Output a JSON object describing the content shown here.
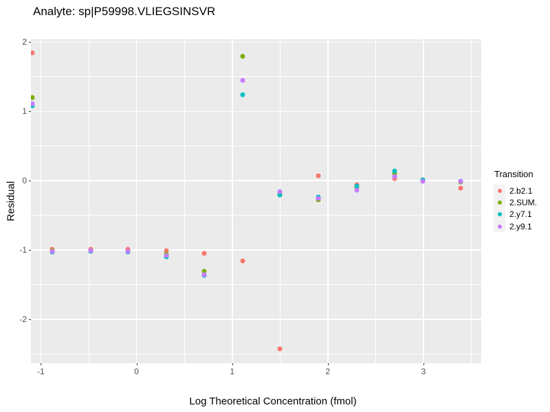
{
  "title": "Analyte: sp|P59998.VLIEGSINSVR",
  "colors": {
    "panel_background": "#EBEBEB",
    "gridline": "#FFFFFF",
    "tick_label": "#4D4D4D",
    "tick_mark": "#333333",
    "legend_key_background": "#F2F2F2"
  },
  "chart_data": {
    "type": "scatter",
    "title": "Analyte: sp|P59998.VLIEGSINSVR",
    "xlabel": "Log Theoretical Concentration (fmol)",
    "ylabel": "Residual",
    "xlim": [
      -1.104,
      3.604
    ],
    "ylim": [
      -2.634,
      2.044
    ],
    "x_ticks": [
      -1,
      0,
      1,
      2,
      3
    ],
    "x_tick_labels": [
      "-1",
      "0",
      "1",
      "2",
      "3"
    ],
    "y_ticks": [
      2,
      1,
      0,
      -1,
      -2
    ],
    "y_tick_labels": [
      "2",
      "1",
      "0",
      "-1",
      "-2"
    ],
    "x_minor_ticks": [
      -0.5,
      0.5,
      1.5,
      2.5,
      3.5
    ],
    "y_minor_ticks": [
      1.5,
      0.5,
      -0.5,
      -1.5,
      -2.5
    ],
    "grid": true,
    "legend_title": "Transition",
    "legend_position": "right",
    "x": [
      -1.09,
      -0.88,
      -0.48,
      -0.09,
      0.31,
      0.71,
      1.11,
      1.5,
      1.9,
      2.3,
      2.7,
      2.99,
      3.39
    ],
    "series": [
      {
        "name": "2.b2.1",
        "color": "#F8766D",
        "values": [
          1.85,
          -0.99,
          -0.99,
          -0.99,
          -1.01,
          -1.05,
          -1.16,
          -2.43,
          0.07,
          -0.06,
          0.03,
          -0.01,
          -0.11
        ]
      },
      {
        "name": "2.SUM.",
        "color": "#7CAE00",
        "values": [
          1.2,
          -1.01,
          -1.01,
          -1.02,
          -1.06,
          -1.31,
          1.8,
          -0.2,
          -0.28,
          -0.1,
          0.1,
          0.01,
          -0.02
        ]
      },
      {
        "name": "2.y7.1",
        "color": "#00BFC4",
        "values": [
          1.08,
          -1.03,
          -1.02,
          -1.03,
          -1.1,
          -1.37,
          1.24,
          -0.21,
          -0.24,
          -0.08,
          0.14,
          0.01,
          -0.01
        ]
      },
      {
        "name": "2.y9.1",
        "color": "#C77CFF",
        "values": [
          1.11,
          -1.02,
          -1.01,
          -1.02,
          -1.08,
          -1.36,
          1.45,
          -0.16,
          -0.26,
          -0.14,
          0.06,
          -0.01,
          -0.01
        ]
      }
    ]
  }
}
